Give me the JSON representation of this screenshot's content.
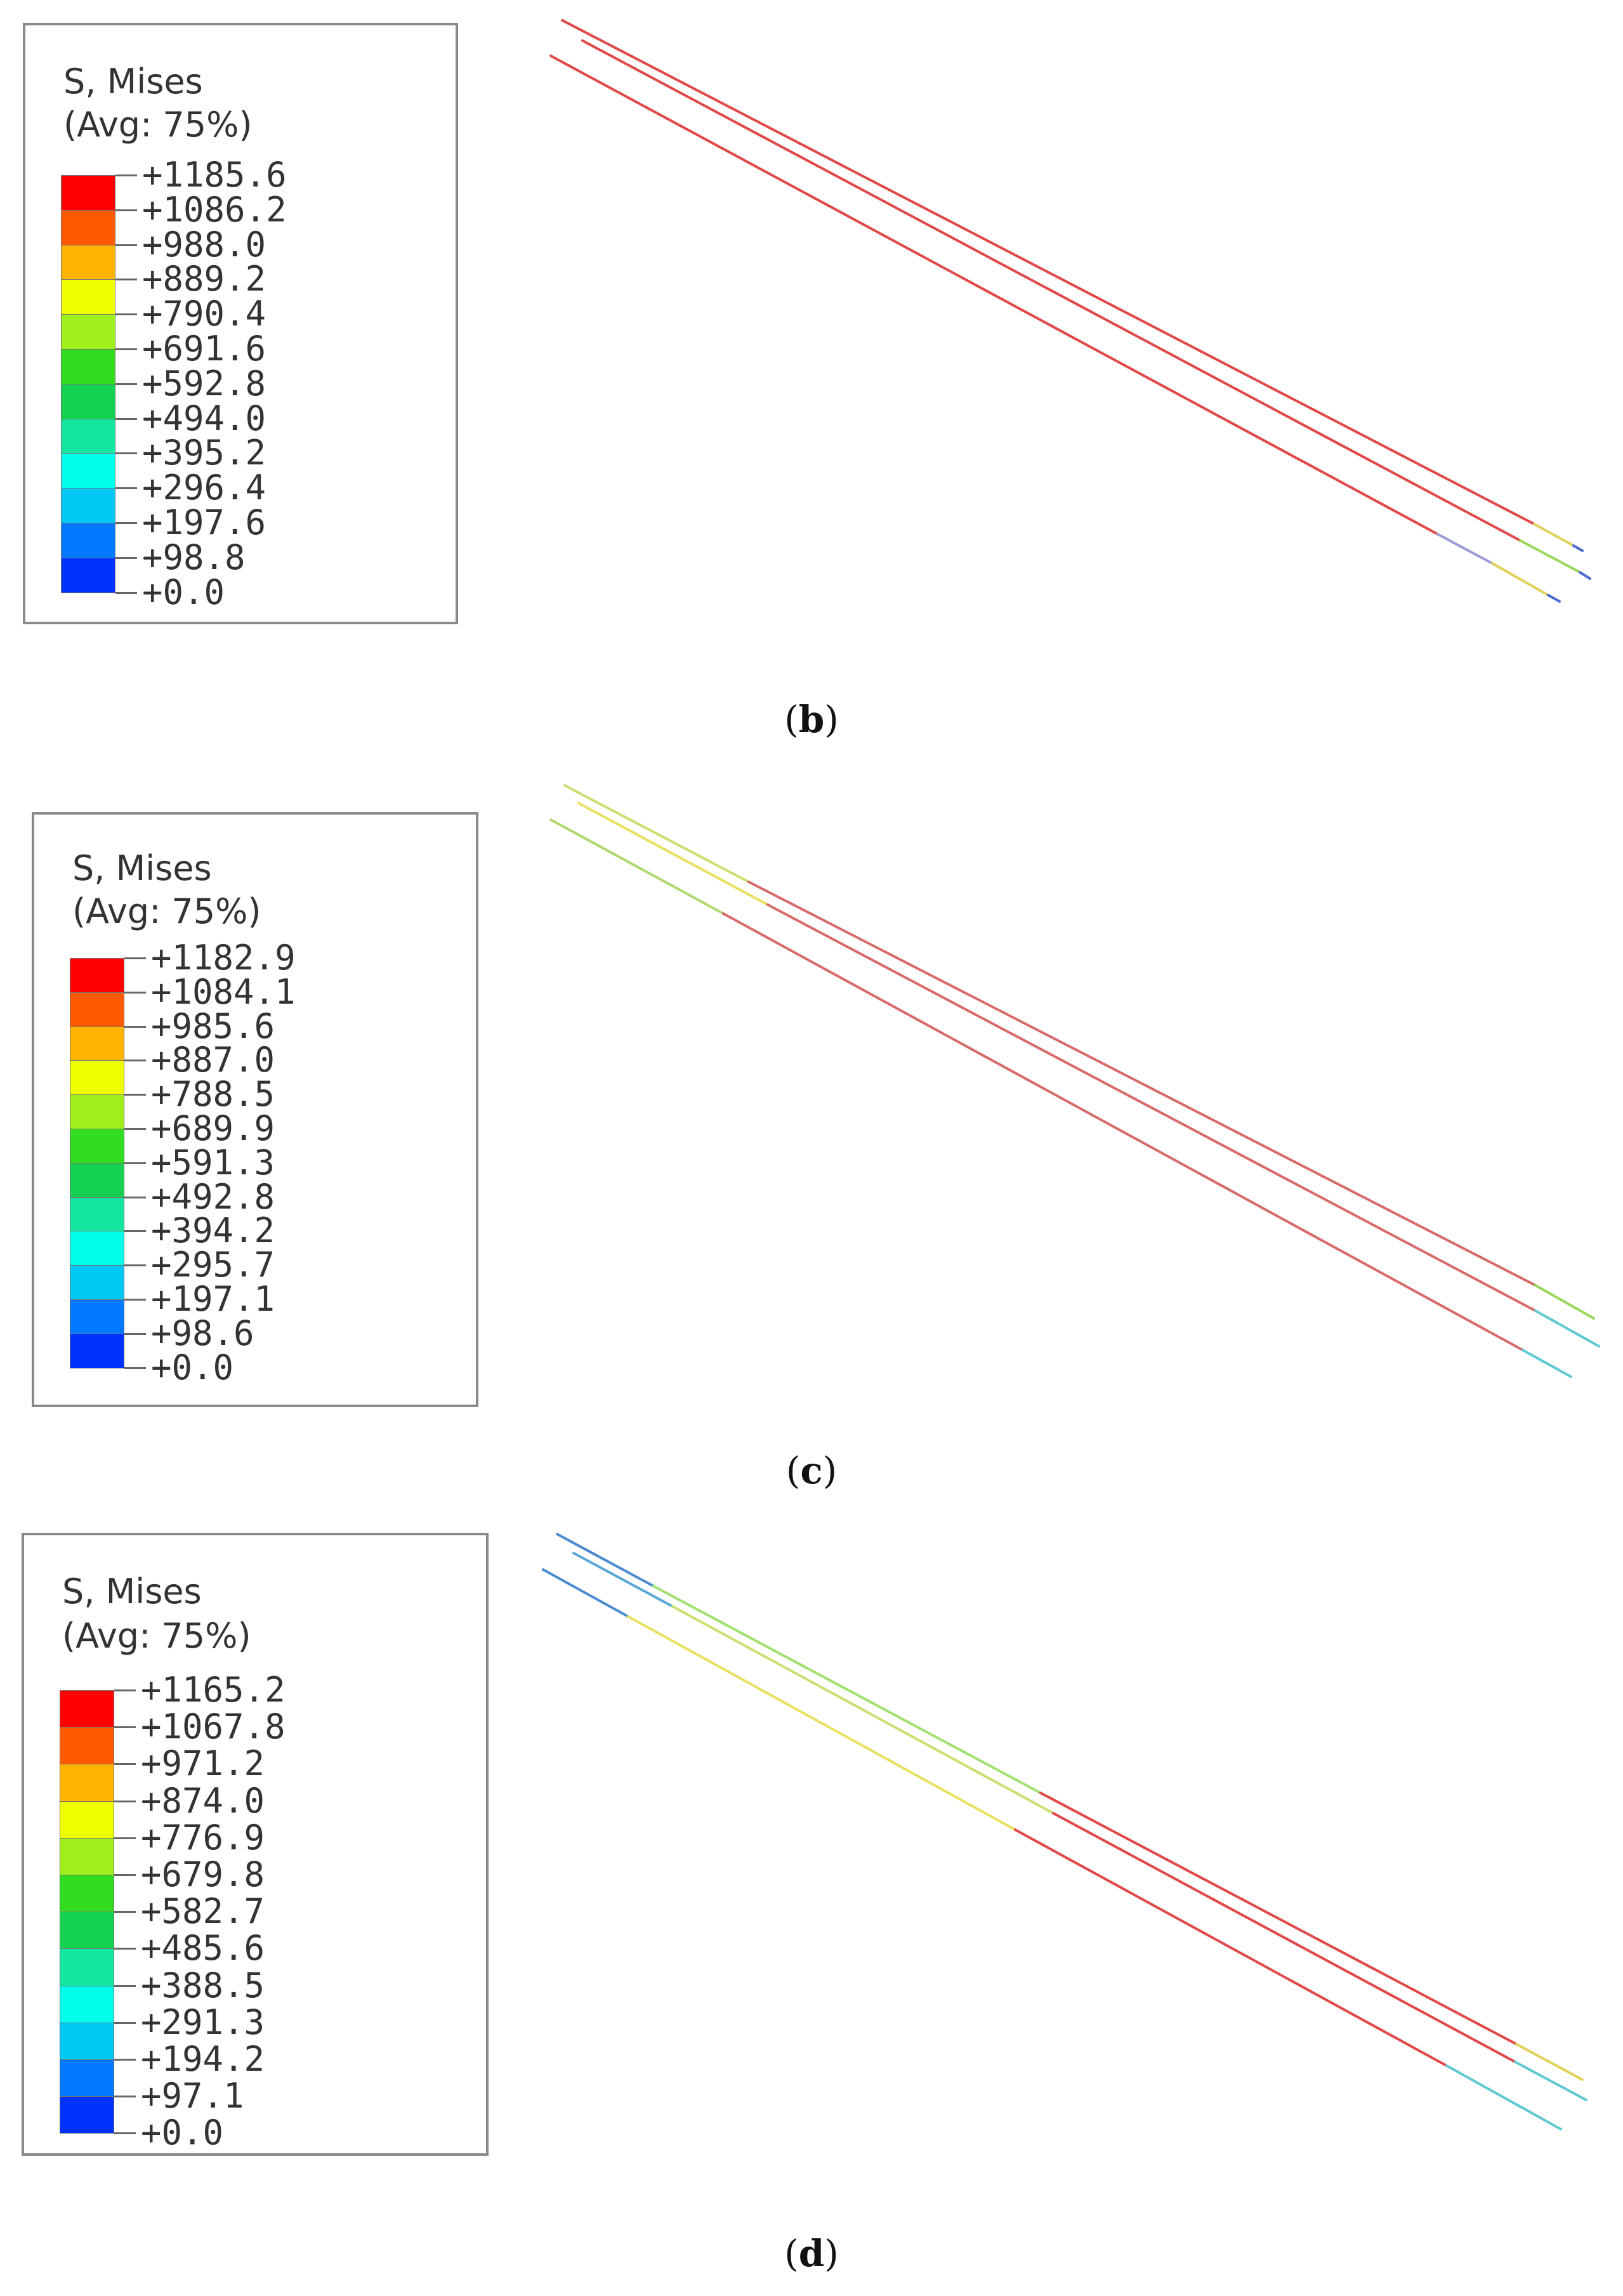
{
  "panels": [
    {
      "id": "b",
      "caption_open": "(",
      "caption_letter": "b",
      "caption_close": ")",
      "legend": {
        "title_line1": "S, Mises",
        "title_line2": "(Avg: 75%)",
        "values": [
          "+1185.6",
          "+1086.2",
          "+988.0",
          "+889.2",
          "+790.4",
          "+691.6",
          "+592.8",
          "+494.0",
          "+395.2",
          "+296.4",
          "+197.6",
          "+98.8",
          "+0.0"
        ]
      }
    },
    {
      "id": "c",
      "caption_open": "(",
      "caption_letter": "c",
      "caption_close": ")",
      "legend": {
        "title_line1": "S, Mises",
        "title_line2": "(Avg: 75%)",
        "values": [
          "+1182.9",
          "+1084.1",
          "+985.6",
          "+887.0",
          "+788.5",
          "+689.9",
          "+591.3",
          "+492.8",
          "+394.2",
          "+295.7",
          "+197.1",
          "+98.6",
          "+0.0"
        ]
      }
    },
    {
      "id": "d",
      "caption_open": "(",
      "caption_letter": "d",
      "caption_close": ")",
      "legend": {
        "title_line1": "S, Mises",
        "title_line2": "(Avg: 75%)",
        "values": [
          "+1165.2",
          "+1067.8",
          "+971.2",
          "+874.0",
          "+776.9",
          "+679.8",
          "+582.7",
          "+485.6",
          "+388.5",
          "+291.3",
          "+194.2",
          "+97.1",
          "+0.0"
        ]
      }
    }
  ],
  "colors": {
    "band_colors": [
      "#ff0000",
      "#ff5a00",
      "#ffb400",
      "#f0ff00",
      "#a0f01e",
      "#32dc1e",
      "#14d250",
      "#14e6a0",
      "#00ffeb",
      "#00c8f5",
      "#0078ff",
      "#0032ff"
    ],
    "frame": "#8a8a8a",
    "text": "#333333"
  }
}
